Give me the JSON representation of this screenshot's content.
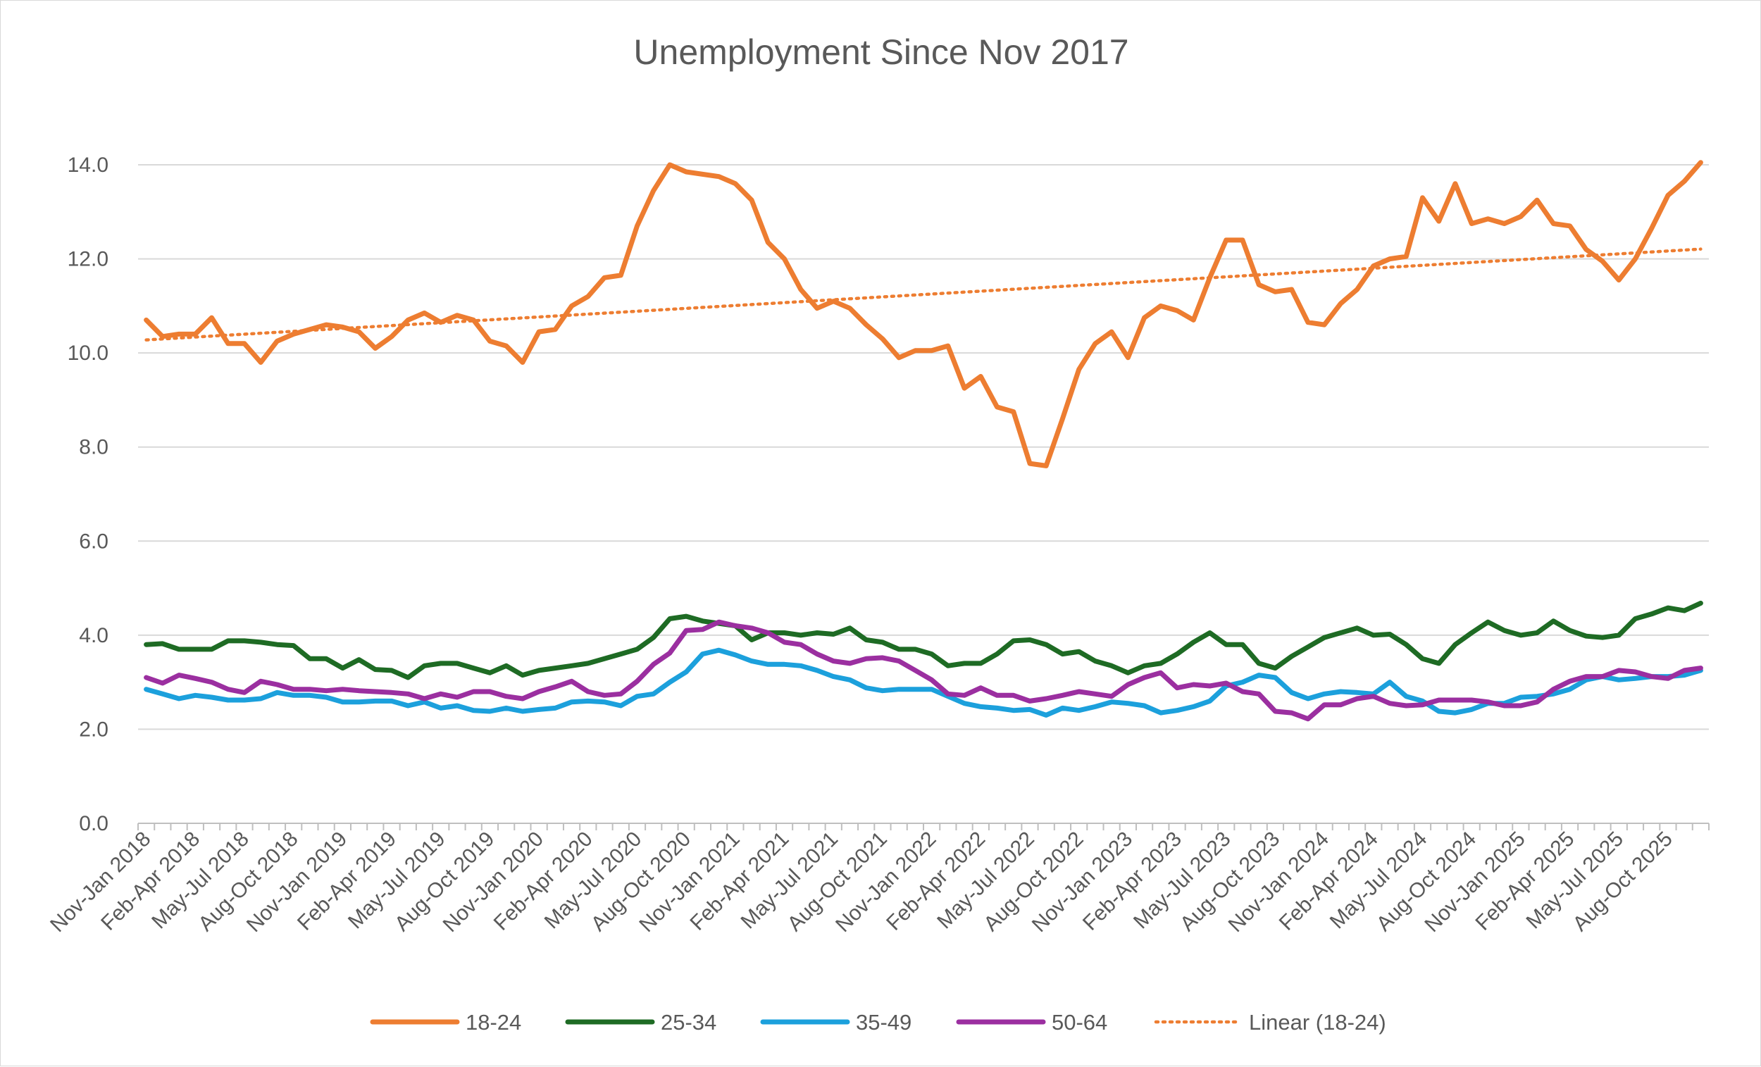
{
  "chart_data": {
    "type": "line",
    "title": "Unemployment Since Nov 2017",
    "xlabel": "",
    "ylabel": "",
    "ylim": [
      0,
      14
    ],
    "ytick_step": 2,
    "grid": true,
    "legend_position": "bottom",
    "categories_labeled": [
      "Nov-Jan 2018",
      "Feb-Apr 2018",
      "May-Jul 2018",
      "Aug-Oct 2018",
      "Nov-Jan 2019",
      "Feb-Apr 2019",
      "May-Jul 2019",
      "Aug-Oct 2019",
      "Nov-Jan 2020",
      "Feb-Apr 2020",
      "May-Jul 2020",
      "Aug-Oct 2020",
      "Nov-Jan 2021",
      "Feb-Apr 2021",
      "May-Jul 2021",
      "Aug-Oct 2021",
      "Nov-Jan 2022",
      "Feb-Apr 2022",
      "May-Jul 2022",
      "Aug-Oct 2022",
      "Nov-Jan 2023",
      "Feb-Apr 2023",
      "May-Jul 2023",
      "Aug-Oct 2023",
      "Nov-Jan 2024",
      "Feb-Apr 2024",
      "May-Jul 2024",
      "Aug-Oct 2024",
      "Nov-Jan 2025",
      "Feb-Apr 2025",
      "May-Jul 2025",
      "Aug-Oct 2025"
    ],
    "label_every": 3,
    "colors": {
      "18-24": "#ed7d31",
      "25-34": "#1e6b24",
      "35-49": "#1ca0dc",
      "50-64": "#9b2fa0",
      "grid": "#d9d9d9",
      "text": "#595959"
    },
    "series": [
      {
        "name": "18-24",
        "values": [
          10.7,
          10.35,
          10.4,
          10.4,
          10.75,
          10.2,
          10.2,
          9.8,
          10.25,
          10.4,
          10.5,
          10.6,
          10.55,
          10.45,
          10.1,
          10.35,
          10.7,
          10.85,
          10.65,
          10.8,
          10.7,
          10.25,
          10.15,
          9.8,
          10.45,
          10.5,
          11.0,
          11.2,
          11.6,
          11.65,
          12.7,
          13.45,
          14.0,
          13.85,
          13.8,
          13.75,
          13.6,
          13.25,
          12.35,
          12.0,
          11.35,
          10.95,
          11.1,
          10.95,
          10.6,
          10.3,
          9.9,
          10.05,
          10.05,
          10.15,
          9.25,
          9.5,
          8.85,
          8.75,
          7.65,
          7.6,
          8.6,
          9.65,
          10.2,
          10.45,
          9.9,
          10.75,
          11.0,
          10.9,
          10.7,
          11.6,
          12.4,
          12.4,
          11.45,
          11.3,
          11.35,
          10.65,
          10.6,
          11.05,
          11.35,
          11.85,
          12.0,
          12.05,
          13.3,
          12.8,
          13.6,
          12.75,
          12.85,
          12.75,
          12.9,
          13.25,
          12.75,
          12.7,
          12.2,
          11.95,
          11.55,
          12.0,
          12.65,
          13.35,
          13.65,
          14.05
        ]
      },
      {
        "name": "25-34",
        "values": [
          3.8,
          3.82,
          3.7,
          3.7,
          3.7,
          3.88,
          3.88,
          3.85,
          3.8,
          3.78,
          3.5,
          3.5,
          3.3,
          3.48,
          3.27,
          3.25,
          3.1,
          3.35,
          3.4,
          3.4,
          3.3,
          3.2,
          3.35,
          3.15,
          3.25,
          3.3,
          3.35,
          3.4,
          3.5,
          3.6,
          3.7,
          3.95,
          4.35,
          4.4,
          4.3,
          4.25,
          4.2,
          3.9,
          4.05,
          4.05,
          4.0,
          4.05,
          4.02,
          4.15,
          3.9,
          3.85,
          3.7,
          3.7,
          3.6,
          3.35,
          3.4,
          3.4,
          3.6,
          3.88,
          3.9,
          3.8,
          3.6,
          3.65,
          3.45,
          3.35,
          3.2,
          3.35,
          3.4,
          3.6,
          3.85,
          4.05,
          3.8,
          3.8,
          3.4,
          3.3,
          3.55,
          3.75,
          3.95,
          4.05,
          4.15,
          4.0,
          4.02,
          3.8,
          3.5,
          3.4,
          3.8,
          4.05,
          4.28,
          4.1,
          4.0,
          4.05,
          4.3,
          4.1,
          3.98,
          3.95,
          4.0,
          4.35,
          4.45,
          4.58,
          4.52,
          4.68
        ]
      },
      {
        "name": "35-49",
        "values": [
          2.85,
          2.75,
          2.65,
          2.72,
          2.68,
          2.62,
          2.62,
          2.65,
          2.78,
          2.72,
          2.72,
          2.68,
          2.58,
          2.58,
          2.6,
          2.6,
          2.5,
          2.58,
          2.45,
          2.5,
          2.4,
          2.38,
          2.45,
          2.38,
          2.42,
          2.45,
          2.58,
          2.6,
          2.58,
          2.5,
          2.7,
          2.75,
          3.0,
          3.22,
          3.6,
          3.68,
          3.58,
          3.45,
          3.38,
          3.38,
          3.35,
          3.25,
          3.12,
          3.05,
          2.88,
          2.82,
          2.85,
          2.85,
          2.85,
          2.7,
          2.55,
          2.48,
          2.45,
          2.4,
          2.42,
          2.3,
          2.45,
          2.4,
          2.48,
          2.58,
          2.55,
          2.5,
          2.35,
          2.4,
          2.48,
          2.6,
          2.92,
          3.0,
          3.15,
          3.1,
          2.78,
          2.65,
          2.75,
          2.8,
          2.78,
          2.75,
          3.0,
          2.7,
          2.6,
          2.38,
          2.35,
          2.42,
          2.55,
          2.55,
          2.68,
          2.7,
          2.75,
          2.85,
          3.05,
          3.12,
          3.05,
          3.08,
          3.12,
          3.12,
          3.15,
          3.25
        ]
      },
      {
        "name": "50-64",
        "values": [
          3.1,
          2.98,
          3.15,
          3.08,
          3.0,
          2.85,
          2.78,
          3.02,
          2.95,
          2.85,
          2.85,
          2.82,
          2.85,
          2.82,
          2.8,
          2.78,
          2.75,
          2.65,
          2.75,
          2.68,
          2.8,
          2.8,
          2.7,
          2.65,
          2.8,
          2.9,
          3.02,
          2.8,
          2.72,
          2.75,
          3.02,
          3.38,
          3.62,
          4.1,
          4.12,
          4.28,
          4.2,
          4.15,
          4.05,
          3.85,
          3.8,
          3.6,
          3.45,
          3.4,
          3.5,
          3.52,
          3.45,
          3.25,
          3.05,
          2.75,
          2.72,
          2.88,
          2.72,
          2.72,
          2.6,
          2.65,
          2.72,
          2.8,
          2.75,
          2.7,
          2.95,
          3.1,
          3.2,
          2.88,
          2.95,
          2.92,
          2.98,
          2.8,
          2.75,
          2.38,
          2.35,
          2.22,
          2.52,
          2.52,
          2.65,
          2.7,
          2.55,
          2.5,
          2.52,
          2.62,
          2.62,
          2.62,
          2.58,
          2.5,
          2.5,
          2.58,
          2.85,
          3.02,
          3.12,
          3.12,
          3.25,
          3.22,
          3.12,
          3.08,
          3.25,
          3.3
        ]
      }
    ],
    "trendline": {
      "name": "Linear (18-24)",
      "series": "18-24",
      "style": "dotted"
    }
  }
}
